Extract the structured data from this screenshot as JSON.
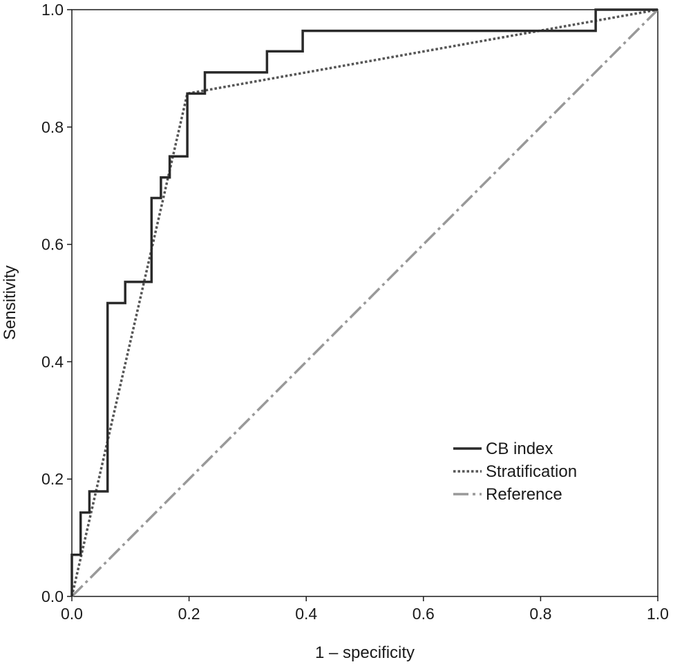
{
  "chart_data": {
    "type": "line",
    "title": "",
    "xlabel": "1 – specificity",
    "ylabel": "Sensitivity",
    "xlim": [
      0,
      1
    ],
    "ylim": [
      0,
      1
    ],
    "x_ticks": [
      {
        "value": 0.0,
        "label": "0.0"
      },
      {
        "value": 0.2,
        "label": "0.2"
      },
      {
        "value": 0.4,
        "label": "0.4"
      },
      {
        "value": 0.6,
        "label": "0.6"
      },
      {
        "value": 0.8,
        "label": "0.8"
      },
      {
        "value": 1.0,
        "label": "1.0"
      }
    ],
    "y_ticks": [
      {
        "value": 0.0,
        "label": "0.0"
      },
      {
        "value": 0.2,
        "label": "0.2"
      },
      {
        "value": 0.4,
        "label": "0.4"
      },
      {
        "value": 0.6,
        "label": "0.6"
      },
      {
        "value": 0.8,
        "label": "0.8"
      },
      {
        "value": 1.0,
        "label": "1.0"
      }
    ],
    "grid": false,
    "legend_position": "bottom-right",
    "series": [
      {
        "name": "CB index",
        "style": "solid",
        "color": "#2a2a2a",
        "points": [
          [
            0.0,
            0.0
          ],
          [
            0.0,
            0.071
          ],
          [
            0.015,
            0.071
          ],
          [
            0.015,
            0.143
          ],
          [
            0.03,
            0.143
          ],
          [
            0.03,
            0.179
          ],
          [
            0.061,
            0.179
          ],
          [
            0.061,
            0.5
          ],
          [
            0.091,
            0.5
          ],
          [
            0.091,
            0.536
          ],
          [
            0.136,
            0.536
          ],
          [
            0.136,
            0.679
          ],
          [
            0.152,
            0.679
          ],
          [
            0.152,
            0.714
          ],
          [
            0.167,
            0.714
          ],
          [
            0.167,
            0.75
          ],
          [
            0.197,
            0.75
          ],
          [
            0.197,
            0.857
          ],
          [
            0.227,
            0.857
          ],
          [
            0.227,
            0.893
          ],
          [
            0.333,
            0.893
          ],
          [
            0.333,
            0.929
          ],
          [
            0.394,
            0.929
          ],
          [
            0.394,
            0.964
          ],
          [
            0.894,
            0.964
          ],
          [
            0.894,
            1.0
          ],
          [
            1.0,
            1.0
          ]
        ]
      },
      {
        "name": "Stratification",
        "style": "dotted",
        "color": "#555555",
        "points": [
          [
            0.0,
            0.0
          ],
          [
            0.197,
            0.857
          ],
          [
            1.0,
            1.0
          ]
        ]
      },
      {
        "name": "Reference",
        "style": "dash-dot",
        "color": "#999999",
        "points": [
          [
            0.0,
            0.0
          ],
          [
            1.0,
            1.0
          ]
        ]
      }
    ]
  }
}
